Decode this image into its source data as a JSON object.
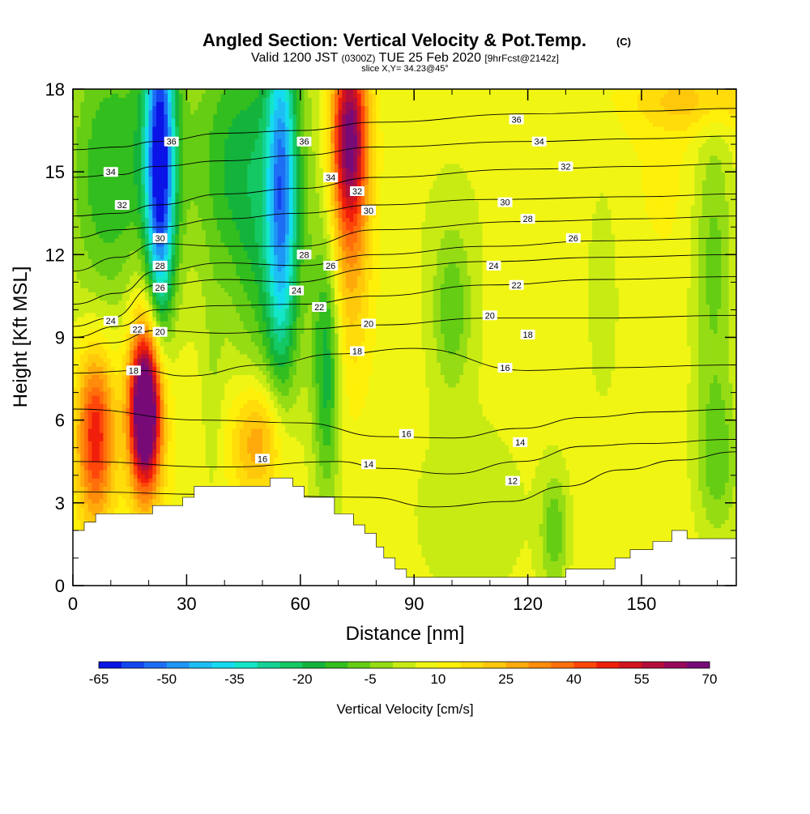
{
  "header": {
    "title": "Angled Section: Vertical Velocity & Pot.Temp.",
    "title_mark": "(C)",
    "valid_prefix": "Valid 1200 JST",
    "valid_zulu": "(0300Z)",
    "valid_date": "TUE 25 Feb 2020",
    "forecast": "[9hrFcst@2142z]",
    "slice": "slice X,Y= 34.23@45°"
  },
  "chart_data": {
    "type": "heatmap",
    "xlabel": "Distance [nm]",
    "ylabel": "Height [Kft MSL]",
    "xlim": [
      0,
      175
    ],
    "ylim": [
      0,
      18
    ],
    "xticks": [
      0,
      30,
      60,
      90,
      120,
      150
    ],
    "yticks": [
      0,
      3,
      6,
      9,
      12,
      15,
      18
    ],
    "grid": false,
    "legend_position": "bottom",
    "colorbar": {
      "label": "Vertical Velocity [cm/s]",
      "tick_labels": [
        "-65",
        "-50",
        "-35",
        "-20",
        "-5",
        "10",
        "25",
        "40",
        "55",
        "70"
      ],
      "levels": [
        -65,
        -60,
        -55,
        -50,
        -45,
        -40,
        -35,
        -30,
        -25,
        -20,
        -15,
        -10,
        -5,
        0,
        5,
        10,
        15,
        20,
        25,
        30,
        35,
        40,
        45,
        50,
        55,
        60,
        65,
        70
      ],
      "colors": [
        "#0a14e6",
        "#1446f0",
        "#1e6ef5",
        "#1e96f5",
        "#1ebef5",
        "#14dcf0",
        "#14e6c8",
        "#14d296",
        "#14c864",
        "#14b43c",
        "#32be1e",
        "#64cd14",
        "#96dc14",
        "#c8eb14",
        "#f0f514",
        "#fff00a",
        "#ffdc0a",
        "#ffc80a",
        "#ffaa0a",
        "#ff8c0a",
        "#ff6e0a",
        "#ff460a",
        "#f01e0a",
        "#d2141e",
        "#b40f3c",
        "#960a5a",
        "#780a78"
      ]
    },
    "vertical_velocity_field": {
      "units": "cm/s",
      "background": 8,
      "features": [
        {
          "x": 23,
          "y": 15,
          "sx": 2.6,
          "sy": 4.2,
          "value": -60
        },
        {
          "x": 23,
          "y": 16,
          "sx": 5.5,
          "sy": 4.5,
          "value": -15
        },
        {
          "x": 55,
          "y": 14.5,
          "sx": 2.6,
          "sy": 4.5,
          "value": -38
        },
        {
          "x": 53,
          "y": 13.5,
          "sx": 7.5,
          "sy": 5,
          "value": -25
        },
        {
          "x": 9,
          "y": 15,
          "sx": 8,
          "sy": 4,
          "value": -22
        },
        {
          "x": 40,
          "y": 15.5,
          "sx": 7,
          "sy": 3.5,
          "value": -18
        },
        {
          "x": 19,
          "y": 6.3,
          "sx": 2.8,
          "sy": 1.9,
          "value": 70
        },
        {
          "x": 20,
          "y": 7.5,
          "sx": 4,
          "sy": 3,
          "value": 22
        },
        {
          "x": 6,
          "y": 5.5,
          "sx": 3.5,
          "sy": 2.2,
          "value": 42
        },
        {
          "x": 73,
          "y": 16.5,
          "sx": 3.2,
          "sy": 2.2,
          "value": 50
        },
        {
          "x": 73,
          "y": 13,
          "sx": 4,
          "sy": 3.5,
          "value": 22
        },
        {
          "x": 67,
          "y": 8,
          "sx": 2.5,
          "sy": 3.5,
          "value": -25
        },
        {
          "x": 49,
          "y": 5.3,
          "sx": 5,
          "sy": 1.5,
          "value": 25
        },
        {
          "x": 100,
          "y": 10,
          "sx": 3.5,
          "sy": 2,
          "value": -15
        },
        {
          "x": 100,
          "y": 13,
          "sx": 14,
          "sy": 4,
          "value": -3
        },
        {
          "x": 127,
          "y": 2,
          "sx": 2.5,
          "sy": 1.5,
          "value": -16
        },
        {
          "x": 140,
          "y": 11,
          "sx": 4,
          "sy": 4,
          "value": -5
        },
        {
          "x": 169,
          "y": 12,
          "sx": 4,
          "sy": 4,
          "value": -16
        },
        {
          "x": 170,
          "y": 4.5,
          "sx": 4,
          "sy": 2,
          "value": -15
        },
        {
          "x": 105,
          "y": 2.5,
          "sx": 14,
          "sy": 3,
          "value": -5
        },
        {
          "x": 160,
          "y": 15,
          "sx": 12,
          "sy": 3,
          "value": 3
        },
        {
          "x": 37,
          "y": 7,
          "sx": 2,
          "sy": 3,
          "value": -6
        },
        {
          "x": 165,
          "y": 17.6,
          "sx": 12,
          "sy": 0.8,
          "value": 14
        }
      ]
    },
    "potential_temperature_contours": {
      "units": "°C",
      "lines": [
        {
          "value": 12,
          "points": [
            [
              0,
              3.4
            ],
            [
              40,
              3.3
            ],
            [
              78,
              3.2
            ],
            [
              95,
              2.85
            ],
            [
              115,
              3.05
            ],
            [
              130,
              3.6
            ],
            [
              145,
              4.2
            ],
            [
              160,
              4.55
            ],
            [
              175,
              4.85
            ]
          ]
        },
        {
          "value": 14,
          "points": [
            [
              0,
              4.5
            ],
            [
              40,
              4.3
            ],
            [
              70,
              4.5
            ],
            [
              82,
              4.25
            ],
            [
              100,
              4.05
            ],
            [
              118,
              4.5
            ],
            [
              135,
              5.05
            ],
            [
              150,
              5.15
            ],
            [
              175,
              5.3
            ]
          ]
        },
        {
          "value": 16,
          "points": [
            [
              0,
              6.4
            ],
            [
              35,
              6.0
            ],
            [
              60,
              5.9
            ],
            [
              82,
              5.4
            ],
            [
              100,
              5.35
            ],
            [
              118,
              5.7
            ],
            [
              135,
              6.1
            ],
            [
              155,
              6.3
            ],
            [
              175,
              6.4
            ]
          ]
        },
        {
          "value": 18,
          "points": [
            [
              0,
              7.7
            ],
            [
              18,
              7.8
            ],
            [
              30,
              7.6
            ],
            [
              50,
              8.0
            ],
            [
              70,
              8.4
            ],
            [
              90,
              8.6
            ],
            [
              120,
              7.8
            ],
            [
              140,
              7.9
            ],
            [
              175,
              8.0
            ]
          ]
        },
        {
          "value": 20,
          "points": [
            [
              0,
              8.6
            ],
            [
              10,
              8.8
            ],
            [
              22,
              9.25
            ],
            [
              40,
              9.15
            ],
            [
              60,
              9.3
            ],
            [
              80,
              9.45
            ],
            [
              110,
              9.7
            ],
            [
              140,
              9.7
            ],
            [
              175,
              9.8
            ]
          ]
        },
        {
          "value": 22,
          "points": [
            [
              0,
              9.0
            ],
            [
              12,
              9.4
            ],
            [
              22,
              10.0
            ],
            [
              40,
              10.15
            ],
            [
              60,
              10.2
            ],
            [
              80,
              10.5
            ],
            [
              110,
              10.9
            ],
            [
              140,
              11.1
            ],
            [
              175,
              11.2
            ]
          ]
        },
        {
          "value": 24,
          "points": [
            [
              0,
              9.4
            ],
            [
              10,
              9.7
            ],
            [
              22,
              10.9
            ],
            [
              40,
              11.1
            ],
            [
              58,
              11.0
            ],
            [
              80,
              11.5
            ],
            [
              110,
              11.75
            ],
            [
              140,
              11.9
            ],
            [
              175,
              12.0
            ]
          ]
        },
        {
          "value": 26,
          "points": [
            [
              0,
              10.2
            ],
            [
              12,
              10.6
            ],
            [
              22,
              11.4
            ],
            [
              40,
              11.7
            ],
            [
              60,
              11.6
            ],
            [
              80,
              12.0
            ],
            [
              110,
              12.3
            ],
            [
              140,
              12.5
            ],
            [
              175,
              12.6
            ]
          ]
        },
        {
          "value": 28,
          "points": [
            [
              0,
              11.4
            ],
            [
              12,
              11.9
            ],
            [
              22,
              12.4
            ],
            [
              40,
              12.3
            ],
            [
              60,
              12.3
            ],
            [
              80,
              12.9
            ],
            [
              120,
              13.2
            ],
            [
              150,
              13.3
            ],
            [
              175,
              13.4
            ]
          ]
        },
        {
          "value": 30,
          "points": [
            [
              0,
              12.6
            ],
            [
              12,
              12.9
            ],
            [
              22,
              13.0
            ],
            [
              40,
              13.3
            ],
            [
              60,
              13.5
            ],
            [
              80,
              13.8
            ],
            [
              110,
              14.0
            ],
            [
              150,
              14.1
            ],
            [
              175,
              14.2
            ]
          ]
        },
        {
          "value": 32,
          "points": [
            [
              0,
              13.4
            ],
            [
              12,
              13.5
            ],
            [
              22,
              13.8
            ],
            [
              40,
              14.2
            ],
            [
              60,
              14.4
            ],
            [
              80,
              14.8
            ],
            [
              120,
              15.1
            ],
            [
              150,
              15.2
            ],
            [
              175,
              15.3
            ]
          ]
        },
        {
          "value": 34,
          "points": [
            [
              0,
              14.8
            ],
            [
              12,
              14.9
            ],
            [
              22,
              15.2
            ],
            [
              40,
              15.4
            ],
            [
              60,
              15.6
            ],
            [
              80,
              15.9
            ],
            [
              120,
              16.1
            ],
            [
              150,
              16.2
            ],
            [
              175,
              16.3
            ]
          ]
        },
        {
          "value": 36,
          "points": [
            [
              0,
              15.8
            ],
            [
              12,
              15.9
            ],
            [
              22,
              16.1
            ],
            [
              40,
              16.4
            ],
            [
              60,
              16.5
            ],
            [
              80,
              16.8
            ],
            [
              120,
              17.1
            ],
            [
              150,
              17.2
            ],
            [
              175,
              17.3
            ]
          ]
        }
      ]
    },
    "contour_labels": [
      {
        "text": "36",
        "x": 26,
        "y": 16.1
      },
      {
        "text": "36",
        "x": 61,
        "y": 16.1
      },
      {
        "text": "36",
        "x": 117,
        "y": 16.9
      },
      {
        "text": "34",
        "x": 10,
        "y": 15.0
      },
      {
        "text": "34",
        "x": 68,
        "y": 14.8
      },
      {
        "text": "34",
        "x": 123,
        "y": 16.1
      },
      {
        "text": "32",
        "x": 13,
        "y": 13.8
      },
      {
        "text": "32",
        "x": 75,
        "y": 14.3
      },
      {
        "text": "32",
        "x": 130,
        "y": 15.2
      },
      {
        "text": "30",
        "x": 23,
        "y": 12.6
      },
      {
        "text": "30",
        "x": 78,
        "y": 13.6
      },
      {
        "text": "30",
        "x": 114,
        "y": 13.9
      },
      {
        "text": "28",
        "x": 23,
        "y": 11.6
      },
      {
        "text": "28",
        "x": 61,
        "y": 12.0
      },
      {
        "text": "28",
        "x": 120,
        "y": 13.3
      },
      {
        "text": "26",
        "x": 23,
        "y": 10.8
      },
      {
        "text": "26",
        "x": 68,
        "y": 11.6
      },
      {
        "text": "26",
        "x": 132,
        "y": 12.6
      },
      {
        "text": "24",
        "x": 10,
        "y": 9.6
      },
      {
        "text": "24",
        "x": 59,
        "y": 10.7
      },
      {
        "text": "24",
        "x": 111,
        "y": 11.6
      },
      {
        "text": "22",
        "x": 17,
        "y": 9.3
      },
      {
        "text": "22",
        "x": 65,
        "y": 10.1
      },
      {
        "text": "22",
        "x": 117,
        "y": 10.9
      },
      {
        "text": "20",
        "x": 23,
        "y": 9.2
      },
      {
        "text": "20",
        "x": 78,
        "y": 9.5
      },
      {
        "text": "20",
        "x": 110,
        "y": 9.8
      },
      {
        "text": "18",
        "x": 16,
        "y": 7.8
      },
      {
        "text": "18",
        "x": 75,
        "y": 8.5
      },
      {
        "text": "18",
        "x": 120,
        "y": 9.1
      },
      {
        "text": "16",
        "x": 114,
        "y": 7.9
      },
      {
        "text": "16",
        "x": 88,
        "y": 5.5
      },
      {
        "text": "16",
        "x": 50,
        "y": 4.6
      },
      {
        "text": "14",
        "x": 118,
        "y": 5.2
      },
      {
        "text": "14",
        "x": 78,
        "y": 4.4
      },
      {
        "text": "12",
        "x": 116,
        "y": 3.8
      }
    ],
    "terrain_profile": [
      [
        0,
        2.0
      ],
      [
        3,
        2.0
      ],
      [
        3,
        2.3
      ],
      [
        6,
        2.3
      ],
      [
        6,
        2.6
      ],
      [
        21,
        2.6
      ],
      [
        21,
        2.9
      ],
      [
        29,
        2.9
      ],
      [
        29,
        3.2
      ],
      [
        32,
        3.2
      ],
      [
        32,
        3.6
      ],
      [
        52,
        3.6
      ],
      [
        52,
        3.9
      ],
      [
        58,
        3.9
      ],
      [
        58,
        3.6
      ],
      [
        61,
        3.6
      ],
      [
        61,
        3.2
      ],
      [
        69,
        3.2
      ],
      [
        69,
        2.6
      ],
      [
        74,
        2.6
      ],
      [
        74,
        2.2
      ],
      [
        77,
        2.2
      ],
      [
        77,
        1.9
      ],
      [
        80,
        1.9
      ],
      [
        80,
        1.4
      ],
      [
        82,
        1.4
      ],
      [
        82,
        1.0
      ],
      [
        85,
        1.0
      ],
      [
        85,
        0.6
      ],
      [
        88,
        0.6
      ],
      [
        88,
        0.3
      ],
      [
        130,
        0.3
      ],
      [
        130,
        0.6
      ],
      [
        143,
        0.6
      ],
      [
        143,
        1.0
      ],
      [
        147,
        1.0
      ],
      [
        147,
        1.3
      ],
      [
        153,
        1.3
      ],
      [
        153,
        1.6
      ],
      [
        158,
        1.6
      ],
      [
        158,
        2.0
      ],
      [
        162,
        2.0
      ],
      [
        162,
        1.7
      ],
      [
        175,
        1.7
      ]
    ]
  }
}
